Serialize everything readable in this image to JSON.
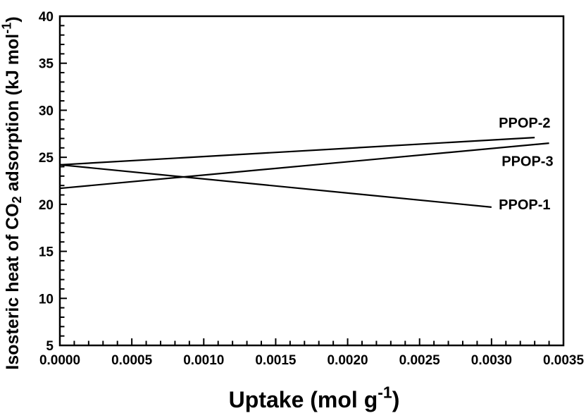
{
  "figure": {
    "background": "#ffffff",
    "ink": "#000000"
  },
  "chart_data": {
    "type": "line",
    "title": "",
    "xlabel": "Uptake (mol g⁻¹)",
    "ylabel": "Isosteric heat of CO₂ adsorption (kJ mol⁻¹)",
    "xlabel_parts": [
      {
        "t": "Uptake (mol g"
      },
      {
        "t": "-1",
        "sup": true
      },
      {
        "t": ")"
      }
    ],
    "ylabel_parts": [
      {
        "t": "Isosteric heat of CO"
      },
      {
        "t": "2",
        "sub": true
      },
      {
        "t": " adsorption (kJ mol"
      },
      {
        "t": "-1",
        "sup": true
      },
      {
        "t": ")"
      }
    ],
    "xlim": [
      0,
      0.0035
    ],
    "ylim": [
      5,
      40
    ],
    "x_ticks": [
      0.0,
      0.0005,
      0.001,
      0.0015,
      0.002,
      0.0025,
      0.003,
      0.0035
    ],
    "x_tick_labels": [
      "0.0000",
      "0.0005",
      "0.0010",
      "0.0015",
      "0.0020",
      "0.0025",
      "0.0030",
      "0.0035"
    ],
    "x_minor_step": 0.0001,
    "y_ticks": [
      5,
      10,
      15,
      20,
      25,
      30,
      35,
      40
    ],
    "y_tick_labels": [
      "5",
      "10",
      "15",
      "20",
      "25",
      "30",
      "35",
      "40"
    ],
    "y_minor_step": 1,
    "grid": false,
    "legend": "inline-labels",
    "line_color": "#000000",
    "series": [
      {
        "name": "PPOP-1",
        "x": [
          0.0,
          0.003
        ],
        "y": [
          24.2,
          19.7
        ]
      },
      {
        "name": "PPOP-2",
        "x": [
          0.0,
          0.0033
        ],
        "y": [
          24.2,
          27.1
        ]
      },
      {
        "name": "PPOP-3",
        "x": [
          0.0,
          0.0034
        ],
        "y": [
          21.7,
          26.5
        ]
      }
    ],
    "annotations": [
      {
        "text": "PPOP-2",
        "x": 0.00323,
        "y": 28.7
      },
      {
        "text": "PPOP-3",
        "x": 0.00325,
        "y": 24.6
      },
      {
        "text": "PPOP-1",
        "x": 0.00323,
        "y": 20.0
      }
    ]
  }
}
